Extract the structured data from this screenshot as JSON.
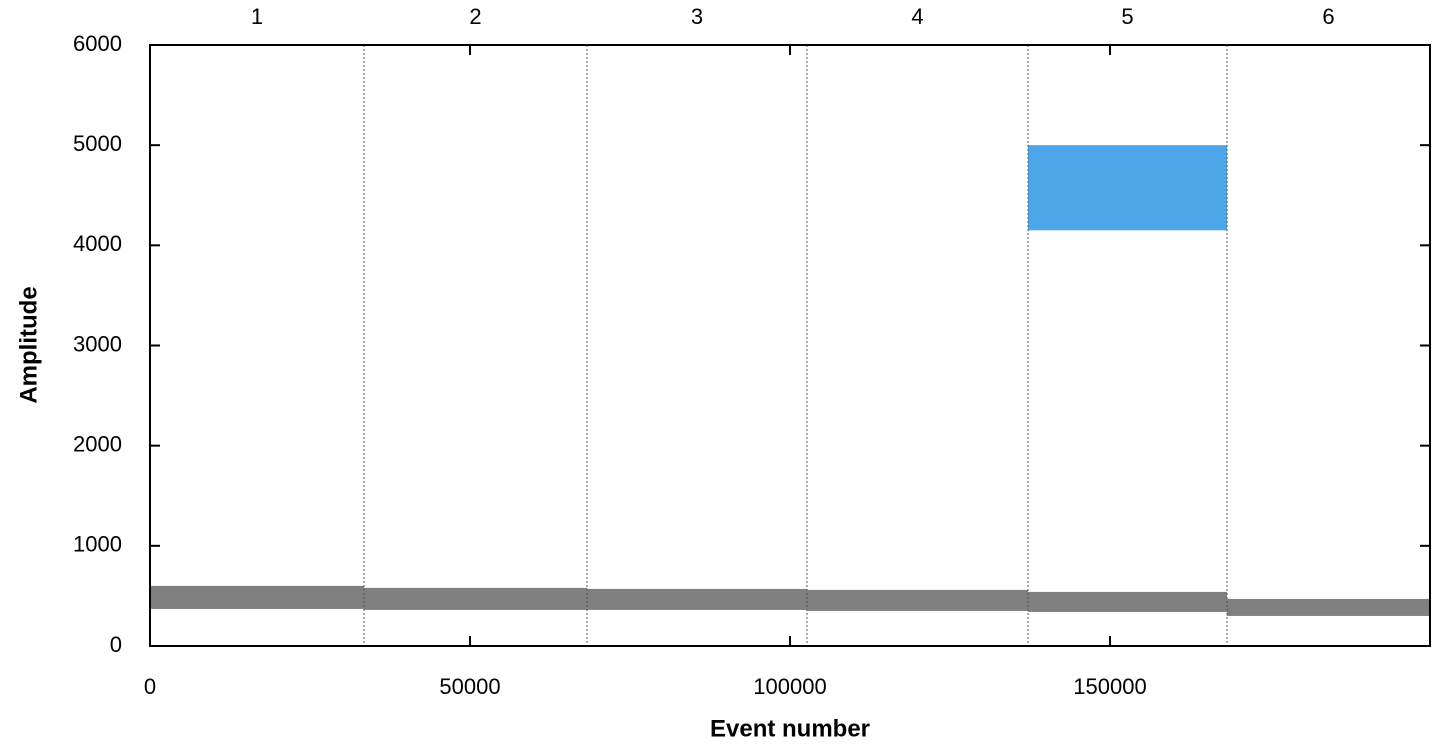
{
  "chart_data": {
    "type": "scatter",
    "xlabel": "Event number",
    "ylabel": "Amplitude",
    "xlim": [
      0,
      200000
    ],
    "ylim": [
      0,
      6000
    ],
    "xticks": [
      0,
      50000,
      100000,
      150000
    ],
    "yticks": [
      0,
      1000,
      2000,
      3000,
      4000,
      5000,
      6000
    ],
    "wells": {
      "labels": [
        "1",
        "2",
        "3",
        "4",
        "5",
        "6"
      ],
      "dividers": [
        33437,
        68281,
        102656,
        137187,
        168281
      ]
    },
    "series": [
      {
        "color": "#808080",
        "clusters": [
          {
            "x": [
              0,
              33437
            ],
            "y": [
              370,
              600
            ]
          },
          {
            "x": [
              33437,
              68281
            ],
            "y": [
              360,
              580
            ]
          },
          {
            "x": [
              68281,
              102656
            ],
            "y": [
              360,
              570
            ]
          },
          {
            "x": [
              102656,
              137187
            ],
            "y": [
              350,
              560
            ]
          },
          {
            "x": [
              137187,
              168281
            ],
            "y": [
              340,
              540
            ]
          },
          {
            "x": [
              168281,
              200000
            ],
            "y": [
              300,
              470
            ]
          }
        ]
      },
      {
        "color": "#4da6e8",
        "clusters": [
          {
            "x": [
              137187,
              168281
            ],
            "y": [
              4150,
              5000
            ]
          }
        ]
      }
    ]
  }
}
